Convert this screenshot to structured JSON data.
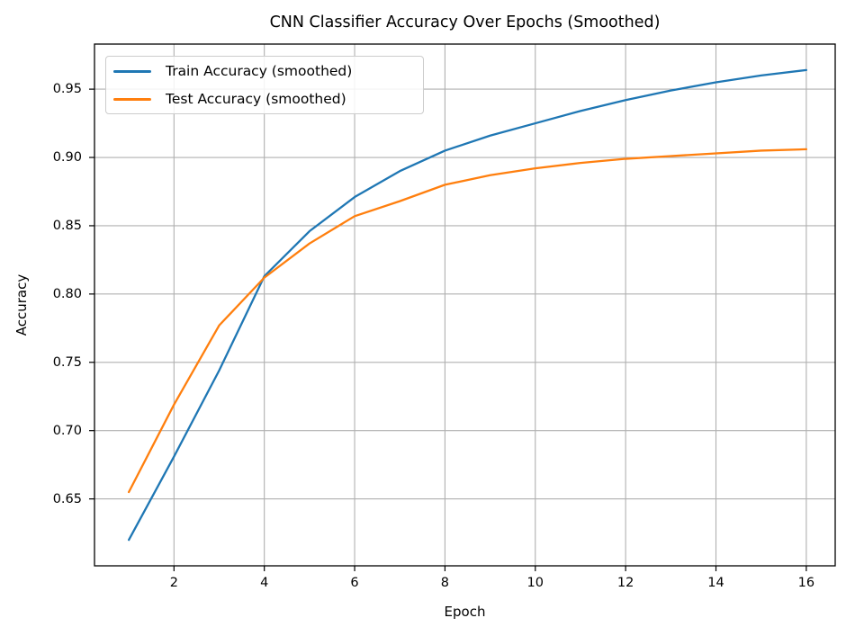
{
  "chart_data": {
    "type": "line",
    "title": "CNN Classifier Accuracy Over Epochs (Smoothed)",
    "xlabel": "Epoch",
    "ylabel": "Accuracy",
    "x": [
      1,
      2,
      3,
      4,
      5,
      6,
      7,
      8,
      9,
      10,
      11,
      12,
      13,
      14,
      15,
      16
    ],
    "series": [
      {
        "name": "Train Accuracy (smoothed)",
        "color": "#1f77b4",
        "values": [
          0.62,
          0.681,
          0.744,
          0.813,
          0.846,
          0.871,
          0.89,
          0.905,
          0.916,
          0.925,
          0.934,
          0.942,
          0.949,
          0.955,
          0.96,
          0.964
        ]
      },
      {
        "name": "Test Accuracy (smoothed)",
        "color": "#ff7f0e",
        "values": [
          0.655,
          0.719,
          0.777,
          0.812,
          0.837,
          0.857,
          0.868,
          0.88,
          0.887,
          0.892,
          0.896,
          0.899,
          0.901,
          0.903,
          0.905,
          0.906
        ]
      }
    ],
    "xlim": [
      0.24,
      16.64
    ],
    "ylim": [
      0.601,
      0.983
    ],
    "xticks": [
      2,
      4,
      6,
      8,
      10,
      12,
      14,
      16
    ],
    "xtick_labels": [
      "2",
      "4",
      "6",
      "8",
      "10",
      "12",
      "14",
      "16"
    ],
    "yticks": [
      0.65,
      0.7,
      0.75,
      0.8,
      0.85,
      0.9,
      0.95
    ],
    "ytick_labels": [
      "0.65",
      "0.70",
      "0.75",
      "0.80",
      "0.85",
      "0.90",
      "0.95"
    ],
    "grid": true,
    "legend_position": "upper left",
    "colors": {
      "grid": "#b0b0b0",
      "spine": "#000000",
      "text": "#000000",
      "background": "#ffffff"
    }
  }
}
